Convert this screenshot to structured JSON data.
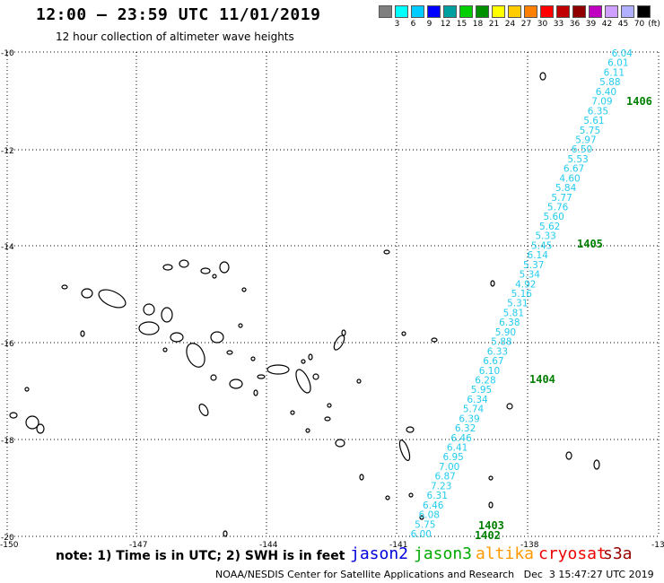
{
  "title": "12:00 – 23:59 UTC 11/01/2019",
  "subtitle": "12 hour collection of altimeter wave heights",
  "colorbar": {
    "colors": [
      "#808080",
      "#00ffff",
      "#00ccff",
      "#0000ff",
      "#00a0a0",
      "#00d000",
      "#009000",
      "#ffff00",
      "#ffcc00",
      "#ff8000",
      "#ff0000",
      "#c00000",
      "#900000",
      "#c000c0",
      "#d0a0ff",
      "#b0b0ff",
      "#000000"
    ],
    "labels": [
      "3",
      "6",
      "9",
      "12",
      "15",
      "18",
      "21",
      "24",
      "27",
      "30",
      "33",
      "36",
      "39",
      "42",
      "45",
      "70"
    ],
    "unit": "(ft)"
  },
  "axes": {
    "lat_labels": [
      "-10",
      "-12",
      "-14",
      "-16",
      "-18",
      "-20"
    ],
    "lon_labels": [
      "-150",
      "-147",
      "-144",
      "-141",
      "-138",
      "-13"
    ]
  },
  "track": {
    "color": "#22ccee",
    "values": [
      "6.04",
      "6.01",
      "6.11",
      "5.88",
      "6.40",
      "7.09",
      "6.35",
      "5.61",
      "5.75",
      "5.97",
      "6.50",
      "5.53",
      "6.67",
      "4.60",
      "5.84",
      "5.77",
      "5.76",
      "5.60",
      "5.62",
      "5.33",
      "5.45",
      "6.14",
      "5.37",
      "5.34",
      "4.92",
      "5.16",
      "5.31",
      "5.81",
      "6.38",
      "5.90",
      "5.88",
      "6.33",
      "6.67",
      "6.10",
      "6.28",
      "5.95",
      "6.34",
      "5.74",
      "6.39",
      "6.32",
      "6.46",
      "6.41",
      "6.95",
      "7.00",
      "6.87",
      "7.23",
      "6.31",
      "6.46",
      "6.08",
      "5.75",
      "6.00"
    ]
  },
  "time_labels": {
    "color": "#008000",
    "items": [
      "1406",
      "1405",
      "1404",
      "1403",
      "1402"
    ]
  },
  "note": "note: 1) Time is in UTC; 2) SWH is in feet",
  "missions": [
    {
      "name": "jason2",
      "color": "#0000dd"
    },
    {
      "name": "jason3",
      "color": "#00aa00"
    },
    {
      "name": "altika",
      "color": "#ff9900"
    },
    {
      "name": "cryosat",
      "color": "#ee0000"
    },
    {
      "name": "s3a",
      "color": "#990000"
    }
  ],
  "credit": "NOAA/NESDIS Center for Satellite Applications and Research   Dec  3 15:47:27 UTC 2019"
}
